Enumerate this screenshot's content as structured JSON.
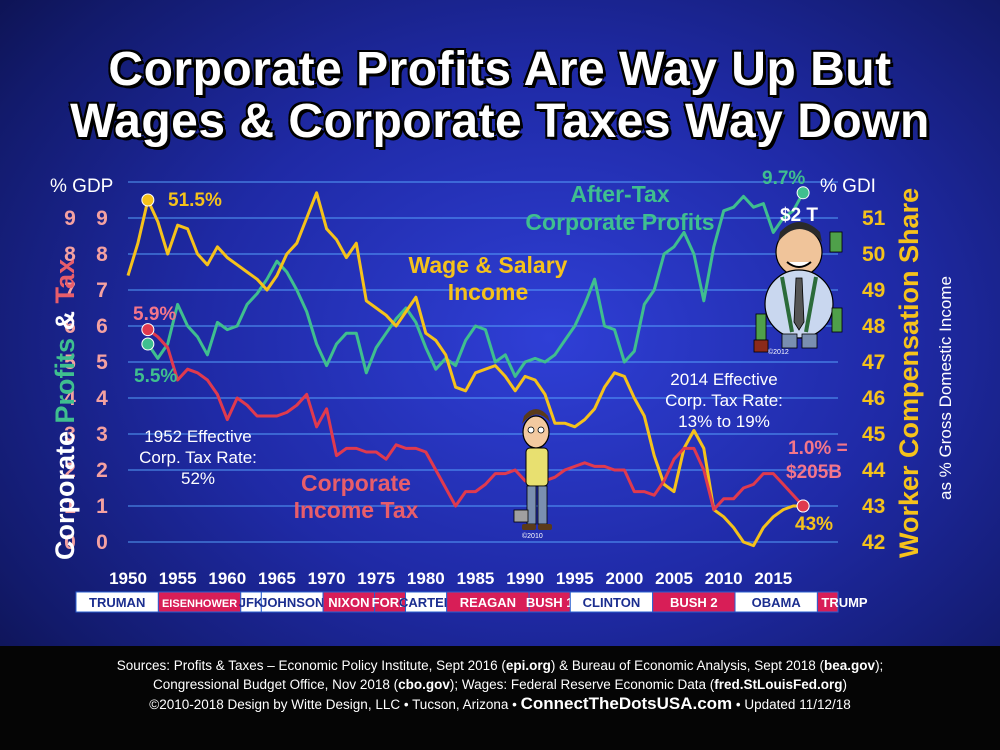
{
  "title_line1": "Corporate Profits Are Way Up But",
  "title_line2": "Wages & Corporate Taxes Way Down",
  "colors": {
    "profits": "#3fbf8f",
    "wages": "#f5c21b",
    "tax": "#e03a4e",
    "axis_left_text": "#f4a1a1",
    "grid": "#5aa8ff"
  },
  "chart_data": {
    "type": "line",
    "left_axis": {
      "unit_label": "% GDP",
      "range": [
        0,
        10
      ],
      "ticks": [
        0,
        1,
        2,
        3,
        4,
        5,
        6,
        7,
        8,
        9
      ],
      "title_parts": [
        "Corporate ",
        "Profits",
        " & ",
        "Tax"
      ]
    },
    "right_axis": {
      "unit_label": "% GDI",
      "range": [
        42,
        52
      ],
      "ticks": [
        42,
        43,
        44,
        45,
        46,
        47,
        48,
        49,
        50,
        51
      ],
      "title": "Worker Compensation Share",
      "subtitle": "as % Gross Domestic Income"
    },
    "x_ticks": [
      1950,
      1955,
      1960,
      1965,
      1970,
      1975,
      1980,
      1985,
      1990,
      1995,
      2000,
      2005,
      2010,
      2015
    ],
    "series": [
      {
        "name": "After-Tax Corporate Profits",
        "axis": "left",
        "x": [
          1950,
          1951,
          1952,
          1953,
          1954,
          1955,
          1956,
          1957,
          1958,
          1959,
          1960,
          1961,
          1962,
          1963,
          1964,
          1965,
          1966,
          1967,
          1968,
          1969,
          1970,
          1971,
          1972,
          1973,
          1974,
          1975,
          1976,
          1977,
          1978,
          1979,
          1980,
          1981,
          1982,
          1983,
          1984,
          1985,
          1986,
          1987,
          1988,
          1989,
          1990,
          1991,
          1992,
          1993,
          1994,
          1995,
          1996,
          1997,
          1998,
          1999,
          2000,
          2001,
          2002,
          2003,
          2004,
          2005,
          2006,
          2007,
          2008,
          2009,
          2010,
          2011,
          2012,
          2013,
          2014,
          2015,
          2016,
          2017,
          2018
        ],
        "y": [
          null,
          null,
          5.5,
          5.1,
          5.5,
          6.6,
          6.0,
          5.7,
          5.2,
          6.1,
          5.9,
          6.0,
          6.6,
          6.9,
          7.3,
          7.8,
          7.5,
          7.0,
          6.4,
          5.5,
          4.9,
          5.5,
          5.8,
          5.8,
          4.7,
          5.4,
          5.8,
          6.2,
          6.5,
          6.1,
          5.4,
          4.8,
          5.1,
          4.9,
          5.6,
          6.0,
          5.9,
          5.0,
          5.2,
          4.6,
          5.0,
          5.1,
          5.0,
          5.2,
          5.6,
          6.0,
          6.6,
          7.3,
          6.0,
          5.9,
          5.0,
          5.3,
          6.6,
          7.0,
          8.0,
          8.2,
          8.6,
          8.0,
          6.7,
          8.2,
          9.2,
          9.3,
          9.6,
          9.3,
          9.4,
          8.6,
          9.0,
          9.2,
          9.7
        ]
      },
      {
        "name": "Wage & Salary Income",
        "axis": "right",
        "x": [
          1950,
          1951,
          1952,
          1953,
          1954,
          1955,
          1956,
          1957,
          1958,
          1959,
          1960,
          1961,
          1962,
          1963,
          1964,
          1965,
          1966,
          1967,
          1968,
          1969,
          1970,
          1971,
          1972,
          1973,
          1974,
          1975,
          1976,
          1977,
          1978,
          1979,
          1980,
          1981,
          1982,
          1983,
          1984,
          1985,
          1986,
          1987,
          1988,
          1989,
          1990,
          1991,
          1992,
          1993,
          1994,
          1995,
          1996,
          1997,
          1998,
          1999,
          2000,
          2001,
          2002,
          2003,
          2004,
          2005,
          2006,
          2007,
          2008,
          2009,
          2010,
          2011,
          2012,
          2013,
          2014,
          2015,
          2016,
          2017,
          2018
        ],
        "y": [
          49.4,
          50.3,
          51.5,
          50.9,
          50.0,
          50.8,
          50.7,
          50.0,
          49.7,
          50.2,
          49.9,
          49.7,
          49.5,
          49.3,
          49.0,
          49.4,
          50.0,
          50.3,
          51.0,
          51.7,
          50.7,
          50.4,
          49.9,
          50.3,
          48.7,
          48.5,
          48.3,
          48.0,
          48.4,
          48.8,
          47.8,
          47.6,
          47.2,
          46.3,
          46.2,
          46.7,
          46.8,
          46.9,
          46.6,
          46.2,
          46.6,
          46.5,
          46.1,
          45.3,
          45.3,
          45.2,
          45.4,
          45.7,
          46.3,
          46.7,
          46.6,
          46.0,
          45.5,
          44.4,
          43.6,
          43.4,
          44.6,
          45.1,
          44.6,
          42.9,
          42.7,
          42.4,
          42.0,
          41.9,
          42.4,
          42.7,
          42.9,
          43.0,
          43.0
        ]
      },
      {
        "name": "Corporate Income Tax",
        "axis": "left",
        "x": [
          1950,
          1951,
          1952,
          1953,
          1954,
          1955,
          1956,
          1957,
          1958,
          1959,
          1960,
          1961,
          1962,
          1963,
          1964,
          1965,
          1966,
          1967,
          1968,
          1969,
          1970,
          1971,
          1972,
          1973,
          1974,
          1975,
          1976,
          1977,
          1978,
          1979,
          1980,
          1981,
          1982,
          1983,
          1984,
          1985,
          1986,
          1987,
          1988,
          1989,
          1990,
          1991,
          1992,
          1993,
          1994,
          1995,
          1996,
          1997,
          1998,
          1999,
          2000,
          2001,
          2002,
          2003,
          2004,
          2005,
          2006,
          2007,
          2008,
          2009,
          2010,
          2011,
          2012,
          2013,
          2014,
          2015,
          2016,
          2017,
          2018
        ],
        "y": [
          null,
          null,
          5.9,
          5.7,
          5.4,
          4.5,
          4.8,
          4.7,
          4.5,
          4.1,
          3.4,
          4.0,
          3.8,
          3.5,
          3.5,
          3.5,
          3.6,
          3.8,
          4.1,
          3.2,
          3.7,
          2.4,
          2.6,
          2.6,
          2.5,
          2.5,
          2.3,
          2.7,
          2.6,
          2.6,
          2.5,
          2.0,
          1.5,
          1.0,
          1.4,
          1.4,
          1.6,
          1.9,
          1.9,
          2.0,
          1.7,
          1.6,
          1.7,
          1.8,
          2.0,
          2.1,
          2.2,
          2.1,
          2.1,
          2.0,
          2.0,
          1.4,
          1.4,
          1.3,
          1.7,
          2.3,
          2.6,
          2.6,
          2.0,
          0.9,
          1.2,
          1.2,
          1.5,
          1.6,
          1.9,
          1.9,
          1.6,
          1.3,
          1.0
        ]
      }
    ],
    "annotations": {
      "profits_start": "5.5%",
      "profits_end": "9.7%",
      "profits_end_value": "$2 T",
      "wages_start": "51.5%",
      "wages_end": "43%",
      "tax_start": "5.9%",
      "tax_end_1": "1.0% =",
      "tax_end_2": "$205B",
      "profits_label_1": "After-Tax",
      "profits_label_2": "Corporate Profits",
      "wages_label_1": "Wage & Salary",
      "wages_label_2": "Income",
      "tax_label_1": "Corporate",
      "tax_label_2": "Income Tax",
      "note1952_1": "1952 Effective",
      "note1952_2": "Corp. Tax Rate:",
      "note1952_3": "52%",
      "note2014_1": "2014 Effective",
      "note2014_2": "Corp. Tax Rate:",
      "note2014_3": "13% to 19%",
      "copy_2010": "©2010",
      "copy_2012": "©2012"
    }
  },
  "presidents": [
    {
      "name": "TRUMAN",
      "start": 1945.0,
      "end": 1953,
      "color": "blue"
    },
    {
      "name": "EISENHOWER",
      "start": 1953,
      "end": 1961,
      "color": "red"
    },
    {
      "name": "JFK",
      "start": 1961,
      "end": 1963,
      "color": "blue"
    },
    {
      "name": "JOHNSON",
      "start": 1963,
      "end": 1969,
      "color": "blue"
    },
    {
      "name": "NIXON",
      "start": 1969,
      "end": 1974,
      "color": "red"
    },
    {
      "name": "FORD",
      "start": 1974,
      "end": 1977,
      "color": "red"
    },
    {
      "name": "CARTER",
      "start": 1977,
      "end": 1981,
      "color": "blue"
    },
    {
      "name": "REAGAN",
      "start": 1981,
      "end": 1989,
      "color": "red"
    },
    {
      "name": "BUSH 1",
      "start": 1989,
      "end": 1993,
      "color": "red"
    },
    {
      "name": "CLINTON",
      "start": 1993,
      "end": 2001,
      "color": "blue"
    },
    {
      "name": "BUSH 2",
      "start": 2001,
      "end": 2009,
      "color": "red"
    },
    {
      "name": "OBAMA",
      "start": 2009,
      "end": 2017,
      "color": "blue"
    },
    {
      "name": "TRUMP",
      "start": 2017,
      "end": 2019,
      "color": "red"
    }
  ],
  "footer": {
    "line1_a": "Sources: Profits & Taxes – Economic Policy Institute, Sept 2016 (",
    "line1_b": "epi.org",
    "line1_c": ") & Bureau of Economic Analysis, Sept 2018 (",
    "line1_d": "bea.gov",
    "line1_e": ");",
    "line2_a": "Congressional Budget Office, Nov 2018 (",
    "line2_b": "cbo.gov",
    "line2_c": "); Wages: Federal Reserve Economic Data (",
    "line2_d": "fred.StLouisFed.org",
    "line2_e": ")",
    "line3_a": "©2010-2018 Design by Witte Design, LLC • Tucson, Arizona • ",
    "line3_b": "ConnectTheDotsUSA.com",
    "line3_c": " • Updated 11/12/18"
  }
}
